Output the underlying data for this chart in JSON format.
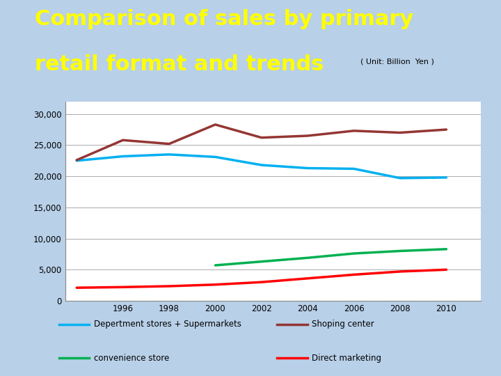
{
  "title_line1": "Comparison of sales by primary",
  "title_line2": "retail format and trends",
  "subtitle": "( Unit: Billion  Yen )",
  "title_color": "#FFFF00",
  "title_bg_color": "#4472C4",
  "chart_bg_color": "#B8D0E8",
  "plot_bg_color": "#FFFFFF",
  "years": [
    1994,
    1996,
    1998,
    2000,
    2002,
    2004,
    2006,
    2008,
    2010
  ],
  "department_stores": [
    22500,
    23200,
    23500,
    23100,
    21800,
    21300,
    21200,
    19700,
    19800
  ],
  "shopping_center": [
    22600,
    25800,
    25200,
    28300,
    26200,
    26500,
    27300,
    27000,
    27500
  ],
  "convenience_store": [
    null,
    null,
    null,
    5700,
    6300,
    6900,
    7600,
    8000,
    8300
  ],
  "direct_marketing": [
    2100,
    2200,
    2350,
    2600,
    3000,
    3600,
    4200,
    4700,
    5000
  ],
  "dept_color": "#00B0F0",
  "shopping_color": "#943634",
  "convenience_color": "#00B050",
  "direct_color": "#FF0000",
  "ylim": [
    0,
    32000
  ],
  "yticks": [
    0,
    5000,
    10000,
    15000,
    20000,
    25000,
    30000
  ],
  "xticks": [
    1996,
    1998,
    2000,
    2002,
    2004,
    2006,
    2008,
    2010
  ],
  "legend_labels": [
    "Depertment stores + Supermarkets",
    "Shoping center",
    "convenience store",
    "Direct marketing"
  ]
}
